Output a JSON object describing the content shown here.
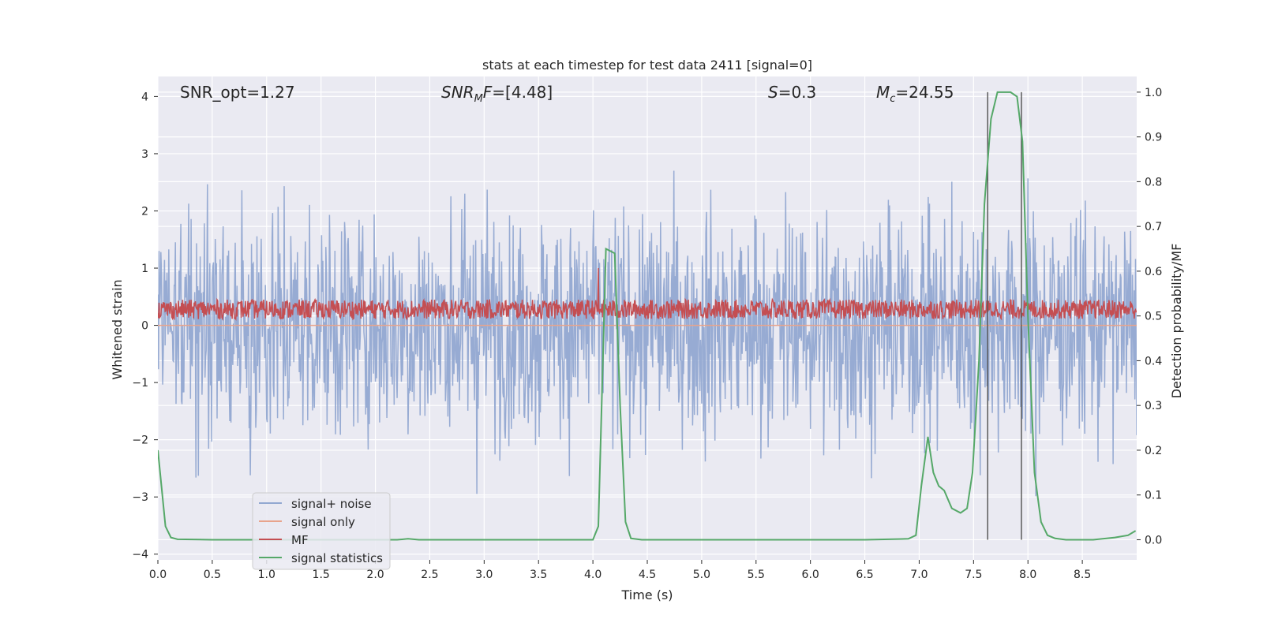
{
  "chart_data": {
    "type": "line",
    "title": "stats at each timestep for test data 2411 [signal=0]",
    "xlabel": "Time (s)",
    "ylabel": "Whitened strain",
    "y2label": "Detection probability/MF",
    "xlim": [
      0.0,
      9.0
    ],
    "ylim": [
      -4.1,
      4.35
    ],
    "y2lim": [
      -0.045,
      1.035
    ],
    "x_ticks": [
      0.0,
      0.5,
      1.0,
      1.5,
      2.0,
      2.5,
      3.0,
      3.5,
      4.0,
      4.5,
      5.0,
      5.5,
      6.0,
      6.5,
      7.0,
      7.5,
      8.0,
      8.5
    ],
    "x_tick_labels": [
      "0.0",
      "0.5",
      "1.0",
      "1.5",
      "2.0",
      "2.5",
      "3.0",
      "3.5",
      "4.0",
      "4.5",
      "5.0",
      "5.5",
      "6.0",
      "6.5",
      "7.0",
      "7.5",
      "8.0",
      "8.5"
    ],
    "y_ticks": [
      4,
      3,
      2,
      1,
      0,
      -1,
      -2,
      -3,
      -4
    ],
    "y_tick_labels": [
      "4",
      "3",
      "2",
      "1",
      "0",
      "−1",
      "−2",
      "−3",
      "−4"
    ],
    "y2_ticks": [
      1.0,
      0.9,
      0.8,
      0.7,
      0.6,
      0.5,
      0.4,
      0.3,
      0.2,
      0.1,
      0.0
    ],
    "y2_tick_labels": [
      "1.0",
      "0.9",
      "0.8",
      "0.7",
      "0.6",
      "0.5",
      "0.4",
      "0.3",
      "0.2",
      "0.1",
      "0.0"
    ],
    "grid": true,
    "legend_position": "lower-left",
    "annotations": {
      "snr_opt": "SNR_opt=1.27",
      "snr_mf_main": "SNR",
      "snr_mf_sub": "M",
      "snr_mf_tail": "F",
      "snr_mf_value": "=[4.48]",
      "s_main": "S",
      "s_value": "=0.3",
      "mc_main": "M",
      "mc_sub": "c",
      "mc_value": "=24.55"
    },
    "vlines_x": [
      7.63,
      7.94
    ],
    "series": [
      {
        "name": "signal+ noise",
        "color": "#92a8d1",
        "axis": "left",
        "kind": "noise",
        "sample_rate": 180,
        "std": 1.0,
        "envelope": [
          -4.0,
          4.0
        ]
      },
      {
        "name": "signal only",
        "color": "#e8a48c",
        "axis": "left",
        "x": [
          0.0,
          9.0
        ],
        "y": [
          0.0,
          0.0
        ]
      },
      {
        "name": "MF",
        "color": "#c44e52",
        "axis": "left",
        "kind": "noise",
        "sample_rate": 180,
        "center": 0.28,
        "amplitude": 0.17,
        "peaks": [
          {
            "x": 4.05,
            "y": 1.0
          }
        ]
      },
      {
        "name": "signal statistics",
        "color": "#55a868",
        "axis": "right",
        "x": [
          0.0,
          0.07,
          0.12,
          0.18,
          0.5,
          1.0,
          2.0,
          2.2,
          2.3,
          2.4,
          2.5,
          3.0,
          3.5,
          4.0,
          4.05,
          4.12,
          4.2,
          4.25,
          4.3,
          4.35,
          4.45,
          5.0,
          5.5,
          6.0,
          6.5,
          6.9,
          6.97,
          7.02,
          7.08,
          7.13,
          7.18,
          7.23,
          7.3,
          7.38,
          7.44,
          7.49,
          7.55,
          7.6,
          7.66,
          7.72,
          7.78,
          7.84,
          7.9,
          7.95,
          8.0,
          8.06,
          8.12,
          8.18,
          8.25,
          8.35,
          8.6,
          8.8,
          8.92,
          8.99
        ],
        "y": [
          0.2,
          0.03,
          0.005,
          0.001,
          0.0,
          0.0,
          0.0,
          0.0,
          0.002,
          0.0,
          0.0,
          0.0,
          0.0,
          0.0,
          0.03,
          0.65,
          0.64,
          0.3,
          0.04,
          0.003,
          0.0,
          0.0,
          0.0,
          0.0,
          0.0,
          0.002,
          0.01,
          0.12,
          0.23,
          0.15,
          0.12,
          0.11,
          0.07,
          0.06,
          0.07,
          0.15,
          0.4,
          0.75,
          0.94,
          1.0,
          1.0,
          1.0,
          0.99,
          0.89,
          0.5,
          0.15,
          0.04,
          0.01,
          0.003,
          0.0,
          0.0,
          0.005,
          0.01,
          0.02
        ]
      }
    ]
  }
}
